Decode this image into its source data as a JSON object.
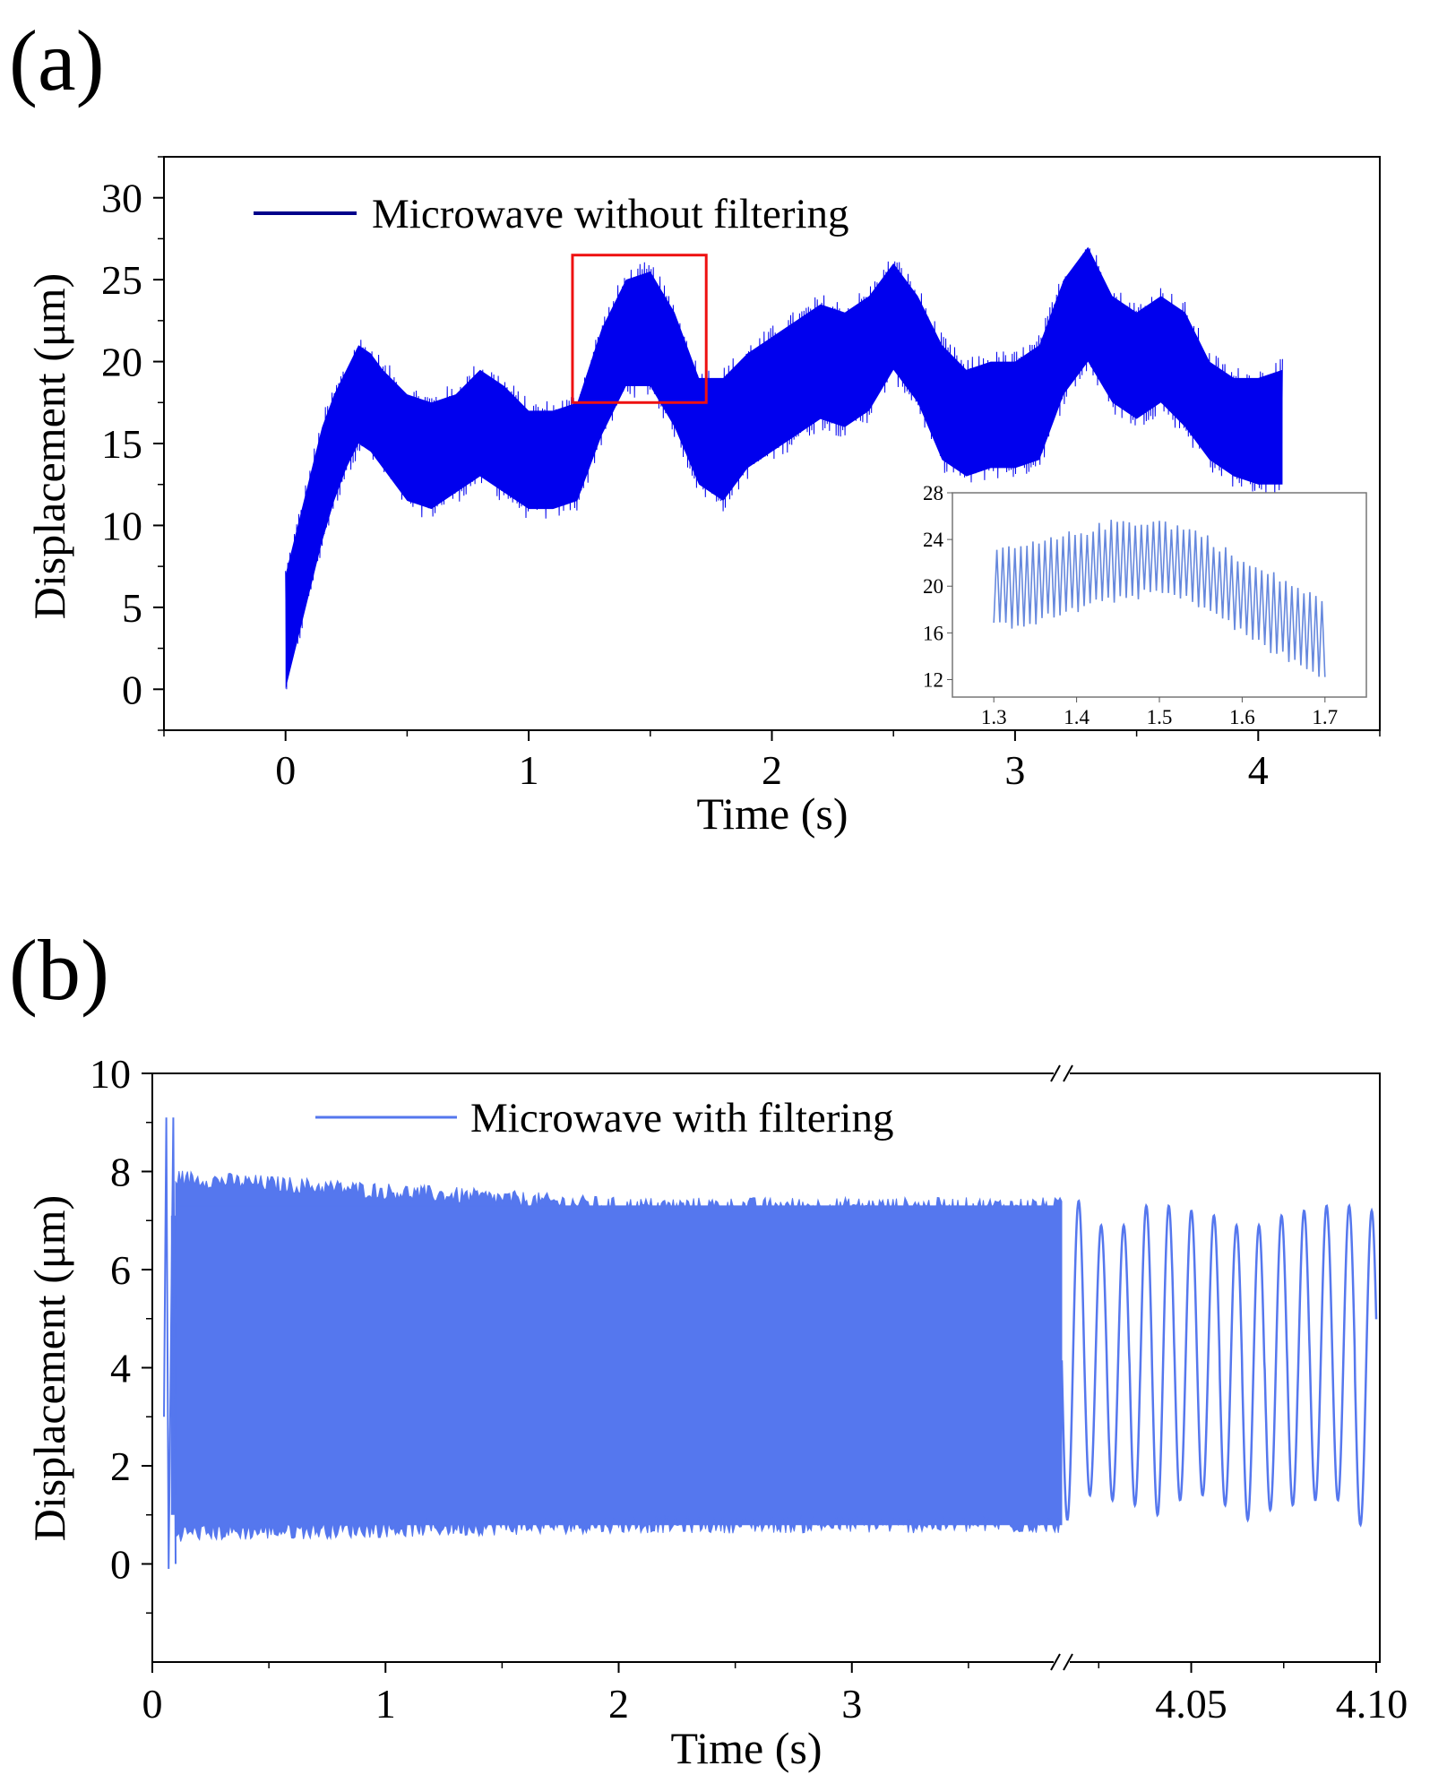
{
  "chart_data": [
    {
      "panel_label": "(a)",
      "type": "line",
      "xlabel": "Time (s)",
      "ylabel": "Displacement (μm)",
      "xlim": [
        -0.5,
        4.5
      ],
      "ylim": [
        -2.5,
        32.5
      ],
      "xticks": [
        "0",
        "1",
        "2",
        "3",
        "4"
      ],
      "yticks": [
        "0",
        "5",
        "10",
        "15",
        "20",
        "25",
        "30"
      ],
      "legend_position": "top-left",
      "series": [
        {
          "name": "Microwave without filtering",
          "color": "#0000EE",
          "legend_color": "#00008B",
          "envelope_x": [
            0,
            0.05,
            0.1,
            0.15,
            0.2,
            0.25,
            0.3,
            0.35,
            0.4,
            0.5,
            0.6,
            0.7,
            0.8,
            0.9,
            1.0,
            1.1,
            1.2,
            1.3,
            1.4,
            1.5,
            1.6,
            1.7,
            1.8,
            1.9,
            2.0,
            2.1,
            2.2,
            2.3,
            2.4,
            2.5,
            2.6,
            2.7,
            2.8,
            2.9,
            3.0,
            3.1,
            3.2,
            3.3,
            3.4,
            3.5,
            3.6,
            3.7,
            3.8,
            3.9,
            4.0,
            4.1
          ],
          "envelope_upper": [
            7,
            10,
            13,
            16,
            18,
            19.5,
            21,
            20.5,
            19.5,
            18,
            17.5,
            18,
            19.5,
            18.5,
            17,
            17,
            17.5,
            22,
            25,
            25.5,
            23,
            19,
            19,
            20.5,
            21.5,
            22.5,
            23.5,
            23,
            24,
            26,
            24,
            21,
            19.5,
            20,
            20,
            21,
            25,
            27,
            24,
            23,
            24,
            23,
            20,
            19,
            19,
            19.5
          ],
          "envelope_lower": [
            0,
            3,
            6,
            9,
            11.5,
            13.5,
            15,
            14.5,
            13.5,
            11.5,
            11,
            12,
            13,
            12,
            11,
            11,
            11.5,
            15.5,
            18.5,
            18.5,
            16,
            12.5,
            11.5,
            13.5,
            14.5,
            15.5,
            16.5,
            16,
            17,
            19.5,
            17.5,
            14,
            13,
            13.5,
            13.5,
            14,
            18,
            20,
            17.5,
            16.5,
            17.5,
            16,
            14,
            13,
            12.5,
            12.5
          ]
        }
      ],
      "highlight_box": {
        "x": [
          1.18,
          1.73
        ],
        "y": [
          17.5,
          26.5
        ]
      },
      "inset": {
        "xlim": [
          1.25,
          1.75
        ],
        "ylim": [
          10.5,
          28
        ],
        "xticks": [
          "1.3",
          "1.4",
          "1.5",
          "1.6",
          "1.7"
        ],
        "yticks": [
          "12",
          "16",
          "20",
          "24",
          "28"
        ],
        "color": "#6688DD",
        "envelope_x": [
          1.3,
          1.35,
          1.4,
          1.45,
          1.5,
          1.55,
          1.6,
          1.65,
          1.7
        ],
        "envelope_upper": [
          23,
          23.5,
          24.5,
          25.5,
          25.5,
          24.5,
          22,
          20.5,
          18.5
        ],
        "envelope_lower": [
          16.5,
          17,
          18,
          19,
          19.5,
          18.5,
          16,
          14,
          12
        ]
      }
    },
    {
      "panel_label": "(b)",
      "type": "line",
      "xlabel": "Time (s)",
      "ylabel": "Displacement (μm)",
      "ylim": [
        -2,
        10
      ],
      "yticks": [
        "0",
        "2",
        "4",
        "6",
        "8",
        "10"
      ],
      "xticks": [
        "0",
        "1",
        "2",
        "3",
        "4.05",
        "4.10"
      ],
      "broken_x_axis": true,
      "segment1_xlim": [
        0,
        3.9
      ],
      "segment2_xlim": [
        4.015,
        4.1
      ],
      "legend_position": "top-center",
      "series": [
        {
          "name": "Microwave with filtering",
          "color": "#5577EE",
          "dense_segment": {
            "x": [
              0.05,
              3.9
            ],
            "upper_mean": 7.3,
            "lower_mean": 0.8,
            "start_spike": 9.1
          },
          "oscillation_peaks": [
            7.4,
            6.9,
            6.9,
            7.3,
            7.3,
            7.2,
            7.1,
            6.9,
            6.9,
            7.1,
            7.2,
            7.3,
            7.3,
            7.2
          ],
          "oscillation_troughs": [
            0.9,
            1.4,
            1.3,
            1.2,
            1.0,
            1.3,
            1.4,
            1.2,
            0.9,
            1.1,
            1.2,
            1.3,
            1.3,
            0.8
          ]
        }
      ]
    }
  ]
}
